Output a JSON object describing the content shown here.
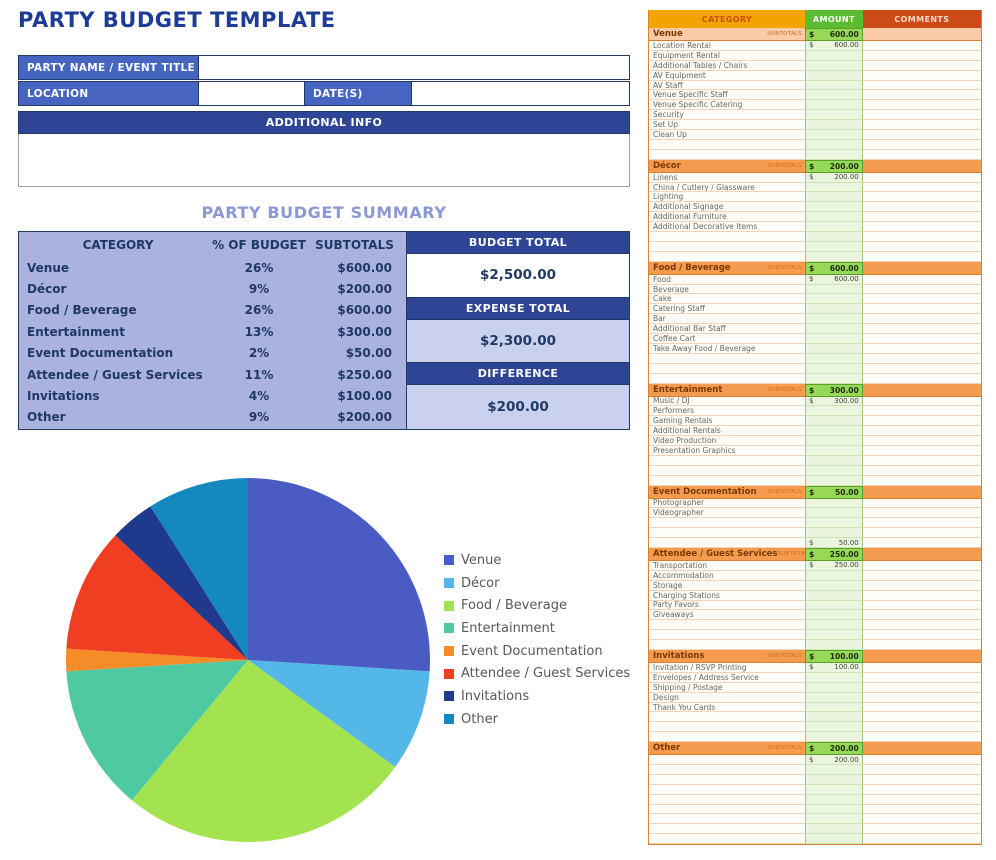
{
  "page": {
    "title": "PARTY BUDGET TEMPLATE"
  },
  "form": {
    "party_name_label": "PARTY NAME / EVENT TITLE",
    "party_name_value": "",
    "location_label": "LOCATION",
    "location_value": "",
    "dates_label": "DATE(S)",
    "dates_value": "",
    "additional_info_label": "ADDITIONAL INFO",
    "additional_info_value": ""
  },
  "summary": {
    "title": "PARTY BUDGET SUMMARY",
    "columns": [
      "CATEGORY",
      "% OF BUDGET",
      "SUBTOTALS"
    ],
    "rows": [
      {
        "category": "Venue",
        "percent": "26%",
        "subtotal": "$600.00"
      },
      {
        "category": "Décor",
        "percent": "9%",
        "subtotal": "$200.00"
      },
      {
        "category": "Food / Beverage",
        "percent": "26%",
        "subtotal": "$600.00"
      },
      {
        "category": "Entertainment",
        "percent": "13%",
        "subtotal": "$300.00"
      },
      {
        "category": "Event Documentation",
        "percent": "2%",
        "subtotal": "$50.00"
      },
      {
        "category": "Attendee / Guest Services",
        "percent": "11%",
        "subtotal": "$250.00"
      },
      {
        "category": "Invitations",
        "percent": "4%",
        "subtotal": "$100.00"
      },
      {
        "category": "Other",
        "percent": "9%",
        "subtotal": "$200.00"
      }
    ],
    "budget_total_label": "BUDGET TOTAL",
    "budget_total": "$2,500.00",
    "expense_total_label": "EXPENSE TOTAL",
    "expense_total": "$2,300.00",
    "difference_label": "DIFFERENCE",
    "difference": "$200.00"
  },
  "chart_data": {
    "type": "pie",
    "categories": [
      "Venue",
      "Décor",
      "Food / Beverage",
      "Entertainment",
      "Event Documentation",
      "Attendee / Guest Services",
      "Invitations",
      "Other"
    ],
    "values": [
      26,
      9,
      26,
      13,
      2,
      11,
      4,
      9
    ],
    "amounts": [
      600,
      200,
      600,
      300,
      50,
      250,
      100,
      200
    ],
    "colors": [
      "#4A5BC4",
      "#53B7E8",
      "#A2E34F",
      "#4EC9A2",
      "#F68C28",
      "#F03E22",
      "#1F3A8C",
      "#1688C0"
    ],
    "legend_position": "right",
    "start_angle_deg": -90,
    "direction": "clockwise"
  },
  "sheet": {
    "columns": [
      "CATEGORY",
      "AMOUNT",
      "COMMENTS"
    ],
    "subtotal_tag": "SUBTOTALS",
    "currency": "$",
    "sections": [
      {
        "name": "Venue",
        "subtotal": "600.00",
        "rows": [
          {
            "label": "Location Rental",
            "amount": "600.00"
          },
          {
            "label": "Equipment Rental",
            "amount": ""
          },
          {
            "label": "Additional Tables / Chairs",
            "amount": ""
          },
          {
            "label": "AV Equipment",
            "amount": ""
          },
          {
            "label": "AV Staff",
            "amount": ""
          },
          {
            "label": "Venue Specific Staff",
            "amount": ""
          },
          {
            "label": "Venue Specific Catering",
            "amount": ""
          },
          {
            "label": "Security",
            "amount": ""
          },
          {
            "label": "Set Up",
            "amount": ""
          },
          {
            "label": "Clean Up",
            "amount": ""
          },
          {
            "label": "",
            "amount": ""
          },
          {
            "label": "",
            "amount": ""
          }
        ]
      },
      {
        "name": "Décor",
        "subtotal": "200.00",
        "rows": [
          {
            "label": "Linens",
            "amount": "200.00"
          },
          {
            "label": "China / Cutlery / Glassware",
            "amount": ""
          },
          {
            "label": "Lighting",
            "amount": ""
          },
          {
            "label": "Additional Signage",
            "amount": ""
          },
          {
            "label": "Additional Furniture",
            "amount": ""
          },
          {
            "label": "Additional Decorative Items",
            "amount": ""
          },
          {
            "label": "",
            "amount": ""
          },
          {
            "label": "",
            "amount": ""
          },
          {
            "label": "",
            "amount": ""
          }
        ]
      },
      {
        "name": "Food / Beverage",
        "subtotal": "600.00",
        "rows": [
          {
            "label": "Food",
            "amount": "600.00"
          },
          {
            "label": "Beverage",
            "amount": ""
          },
          {
            "label": "Cake",
            "amount": ""
          },
          {
            "label": "Catering Staff",
            "amount": ""
          },
          {
            "label": "Bar",
            "amount": ""
          },
          {
            "label": "Additional Bar Staff",
            "amount": ""
          },
          {
            "label": "Coffee Cart",
            "amount": ""
          },
          {
            "label": "Take Away Food / Beverage",
            "amount": ""
          },
          {
            "label": "",
            "amount": ""
          },
          {
            "label": "",
            "amount": ""
          },
          {
            "label": "",
            "amount": ""
          }
        ]
      },
      {
        "name": "Entertainment",
        "subtotal": "300.00",
        "rows": [
          {
            "label": "Music / DJ",
            "amount": "300.00"
          },
          {
            "label": "Performers",
            "amount": ""
          },
          {
            "label": "Gaming Rentals",
            "amount": ""
          },
          {
            "label": "Additional Rentals",
            "amount": ""
          },
          {
            "label": "Video Production",
            "amount": ""
          },
          {
            "label": "Presentation Graphics",
            "amount": ""
          },
          {
            "label": "",
            "amount": ""
          },
          {
            "label": "",
            "amount": ""
          },
          {
            "label": "",
            "amount": ""
          }
        ]
      },
      {
        "name": "Event Documentation",
        "subtotal": "50.00",
        "rows": [
          {
            "label": "Photographer",
            "amount": ""
          },
          {
            "label": "Videographer",
            "amount": ""
          },
          {
            "label": "",
            "amount": ""
          },
          {
            "label": "",
            "amount": ""
          },
          {
            "label": "",
            "amount": "50.00"
          }
        ]
      },
      {
        "name": "Attendee / Guest Services",
        "subtotal": "250.00",
        "rows": [
          {
            "label": "Transportation",
            "amount": "250.00"
          },
          {
            "label": "Accommodation",
            "amount": ""
          },
          {
            "label": "Storage",
            "amount": ""
          },
          {
            "label": "Charging Stations",
            "amount": ""
          },
          {
            "label": "Party Favors",
            "amount": ""
          },
          {
            "label": "Giveaways",
            "amount": ""
          },
          {
            "label": "",
            "amount": ""
          },
          {
            "label": "",
            "amount": ""
          },
          {
            "label": "",
            "amount": ""
          }
        ]
      },
      {
        "name": "Invitations",
        "subtotal": "100.00",
        "rows": [
          {
            "label": "Invitation / RSVP Printing",
            "amount": "100.00"
          },
          {
            "label": "Envelopes / Address Service",
            "amount": ""
          },
          {
            "label": "Shipping / Postage",
            "amount": ""
          },
          {
            "label": "Design",
            "amount": ""
          },
          {
            "label": "Thank You Cards",
            "amount": ""
          },
          {
            "label": "",
            "amount": ""
          },
          {
            "label": "",
            "amount": ""
          },
          {
            "label": "",
            "amount": ""
          }
        ]
      },
      {
        "name": "Other",
        "subtotal": "200.00",
        "rows": [
          {
            "label": "",
            "amount": "200.00"
          },
          {
            "label": "",
            "amount": ""
          },
          {
            "label": "",
            "amount": ""
          },
          {
            "label": "",
            "amount": ""
          },
          {
            "label": "",
            "amount": ""
          },
          {
            "label": "",
            "amount": ""
          },
          {
            "label": "",
            "amount": ""
          },
          {
            "label": "",
            "amount": ""
          },
          {
            "label": "",
            "amount": ""
          }
        ]
      }
    ]
  },
  "colors": {
    "navy": "#1F3864",
    "title_blue": "#1F3C94",
    "label_blue": "#4565C1",
    "dark_blue_bar": "#2E4596",
    "summary_bg": "#A9B3DE",
    "summary_value_bg": "#C9D1EE",
    "summary_title": "#8A99D3",
    "sheet_header_gold": "#F2A500",
    "sheet_header_green": "#5BBB33",
    "sheet_header_red": "#CC4A17",
    "section_orange": "#F59B50",
    "venue_peach": "#FACBA6",
    "amount_cell_green": "#EBF5DE",
    "subtotal_cell_green": "#97D957"
  }
}
